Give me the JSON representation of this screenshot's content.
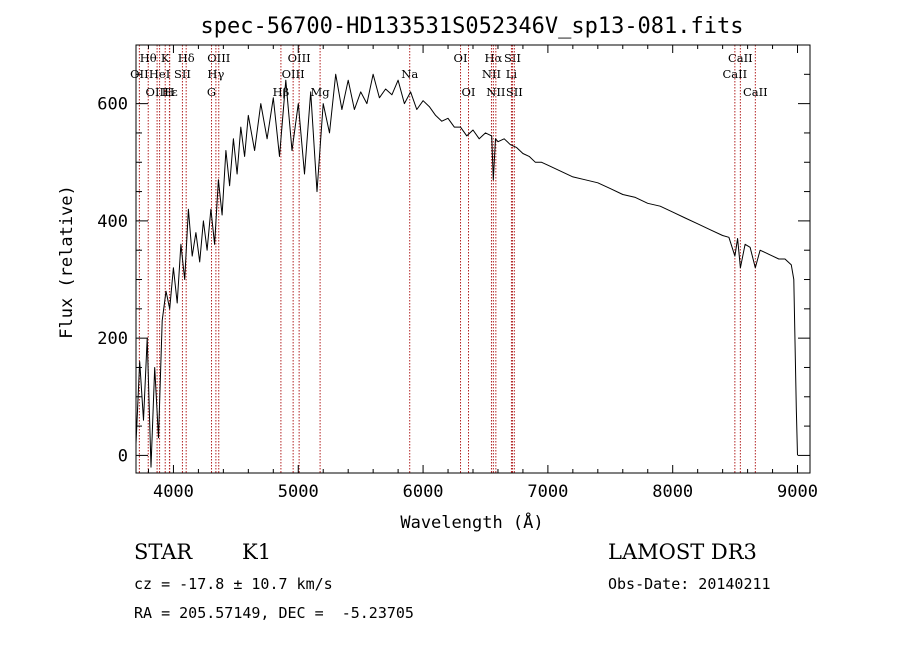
{
  "chart_data": {
    "type": "line",
    "title": "spec-56700-HD133531S052346V_sp13-081.fits",
    "xlabel": "Wavelength (Å)",
    "ylabel": "Flux (relative)",
    "xlim": [
      3700,
      9100
    ],
    "ylim": [
      -30,
      700
    ],
    "xticks": [
      4000,
      5000,
      6000,
      7000,
      8000,
      9000
    ],
    "xtick_labels": [
      "4000",
      "5000",
      "6000",
      "7000",
      "8000",
      "9000"
    ],
    "yticks": [
      0,
      200,
      400,
      600
    ],
    "ytick_labels": [
      "0",
      "200",
      "400",
      "600"
    ],
    "series": [
      {
        "name": "flux",
        "x": [
          3700,
          3730,
          3760,
          3790,
          3820,
          3850,
          3880,
          3910,
          3940,
          3970,
          4000,
          4030,
          4060,
          4090,
          4120,
          4150,
          4180,
          4210,
          4240,
          4270,
          4300,
          4330,
          4360,
          4390,
          4420,
          4450,
          4480,
          4510,
          4540,
          4570,
          4600,
          4650,
          4700,
          4750,
          4800,
          4850,
          4900,
          4950,
          5000,
          5050,
          5100,
          5150,
          5200,
          5250,
          5300,
          5350,
          5400,
          5450,
          5500,
          5550,
          5600,
          5650,
          5700,
          5750,
          5800,
          5850,
          5900,
          5950,
          6000,
          6050,
          6100,
          6150,
          6200,
          6250,
          6300,
          6350,
          6400,
          6450,
          6500,
          6550,
          6563,
          6580,
          6600,
          6650,
          6700,
          6750,
          6800,
          6850,
          6900,
          6950,
          7000,
          7100,
          7200,
          7300,
          7400,
          7500,
          7600,
          7700,
          7800,
          7900,
          8000,
          8100,
          8200,
          8300,
          8400,
          8450,
          8498,
          8520,
          8542,
          8580,
          8620,
          8662,
          8700,
          8750,
          8800,
          8850,
          8900,
          8950,
          8970,
          8990,
          9000
        ],
        "values": [
          20,
          160,
          60,
          200,
          -20,
          150,
          30,
          230,
          280,
          250,
          320,
          260,
          360,
          300,
          420,
          340,
          380,
          330,
          400,
          350,
          420,
          360,
          470,
          410,
          520,
          460,
          540,
          480,
          560,
          510,
          580,
          520,
          600,
          540,
          610,
          510,
          640,
          520,
          600,
          480,
          620,
          450,
          600,
          550,
          650,
          590,
          640,
          590,
          620,
          600,
          650,
          610,
          625,
          615,
          640,
          600,
          620,
          590,
          605,
          595,
          580,
          570,
          575,
          560,
          560,
          545,
          555,
          540,
          550,
          545,
          470,
          540,
          535,
          540,
          530,
          525,
          515,
          510,
          500,
          500,
          495,
          485,
          475,
          470,
          465,
          455,
          445,
          440,
          430,
          425,
          415,
          405,
          395,
          385,
          375,
          372,
          340,
          370,
          320,
          360,
          355,
          320,
          350,
          345,
          340,
          335,
          335,
          325,
          300,
          80,
          0
        ]
      }
    ],
    "line_markers": [
      {
        "name": "Hθ",
        "wavelength": 3798,
        "row": 1
      },
      {
        "name": "OII",
        "wavelength": 3727,
        "row": 2
      },
      {
        "name": "OIII",
        "wavelength": 3869,
        "row": 3
      },
      {
        "name": "K",
        "wavelength": 3934,
        "row": 1
      },
      {
        "name": "HeI",
        "wavelength": 3889,
        "row": 2
      },
      {
        "name": "Hε",
        "wavelength": 3970,
        "row": 3
      },
      {
        "name": "Hδ",
        "wavelength": 4102,
        "row": 1
      },
      {
        "name": "SII",
        "wavelength": 4072,
        "row": 2
      },
      {
        "name": "H",
        "wavelength": 3968,
        "row": 3
      },
      {
        "name": "OIII",
        "wavelength": 4363,
        "row": 1
      },
      {
        "name": "Hγ",
        "wavelength": 4340,
        "row": 2
      },
      {
        "name": "G",
        "wavelength": 4305,
        "row": 3
      },
      {
        "name": "Hβ",
        "wavelength": 4861,
        "row": 3
      },
      {
        "name": "OIII",
        "wavelength": 5007,
        "row": 1
      },
      {
        "name": "OIII",
        "wavelength": 4959,
        "row": 2
      },
      {
        "name": "Mg",
        "wavelength": 5175,
        "row": 3
      },
      {
        "name": "Na",
        "wavelength": 5893,
        "row": 2
      },
      {
        "name": "OI",
        "wavelength": 6300,
        "row": 1
      },
      {
        "name": "OI",
        "wavelength": 6364,
        "row": 3
      },
      {
        "name": "Hα",
        "wavelength": 6563,
        "row": 1
      },
      {
        "name": "SII",
        "wavelength": 6716,
        "row": 1
      },
      {
        "name": "NII",
        "wavelength": 6548,
        "row": 2
      },
      {
        "name": "Li",
        "wavelength": 6708,
        "row": 2
      },
      {
        "name": "NII",
        "wavelength": 6583,
        "row": 3
      },
      {
        "name": "SII",
        "wavelength": 6731,
        "row": 3
      },
      {
        "name": "CaII",
        "wavelength": 8542,
        "row": 1
      },
      {
        "name": "CaII",
        "wavelength": 8498,
        "row": 2
      },
      {
        "name": "CaII",
        "wavelength": 8662,
        "row": 3
      }
    ],
    "colors": {
      "spectrum": "#000000",
      "markers": "#b22222",
      "axes": "#000000"
    }
  },
  "info": {
    "object_class": "STAR",
    "subclass": "K1",
    "survey": "LAMOST DR3",
    "cz": "cz = -17.8 ± 10.7 km/s",
    "obs_date": "Obs-Date: 20140211",
    "coords": "RA = 205.57149, DEC =  -5.23705"
  }
}
